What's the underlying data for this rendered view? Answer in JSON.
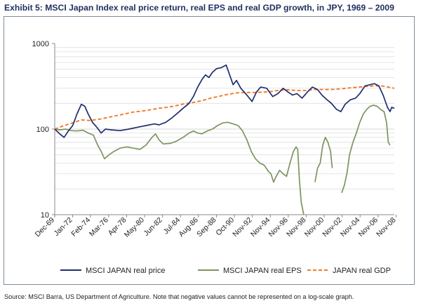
{
  "title": "Exhibit 5: MSCI Japan Index real price return, real EPS and real GDP growth, in JPY, 1969 – 2009",
  "source": "Source: MSCI Barra, US Department of Agriculture. Note that negative values cannot be represented on a log-scale graph.",
  "colors": {
    "price": "#1f2f6f",
    "eps": "#7d9460",
    "gdp": "#f07b2b",
    "grid": "#d7d7d7",
    "axis": "#888888",
    "text": "#222222"
  },
  "chart_data": {
    "type": "line",
    "title": "Exhibit 5: MSCI Japan Index real price return, real EPS and real GDP growth, in JPY, 1969 – 2009",
    "xlabel": "",
    "ylabel": "",
    "yscale": "log",
    "ylim": [
      10,
      1000
    ],
    "xlim": [
      1969.92,
      2009.3
    ],
    "y_ticks": [
      10,
      100,
      1000
    ],
    "y_tick_labels": [
      "10",
      "100",
      "1000"
    ],
    "x_ticks": [
      1969.92,
      1972.0,
      1974.08,
      1976.17,
      1978.25,
      1980.33,
      1982.42,
      1984.5,
      1986.58,
      1988.67,
      1990.75,
      1992.83,
      1994.92,
      1997.0,
      1999.08,
      2001.17,
      2003.25,
      2005.33,
      2007.42,
      2009.5
    ],
    "x_tick_labels": [
      "Dec-69",
      "Jan-72",
      "Feb-74",
      "Mar-76",
      "Apr-78",
      "May-80",
      "Jun-82",
      "Jul-84",
      "Aug-86",
      "Sep-88",
      "Oct-90",
      "Nov-92",
      "Nov-94",
      "Nov-96",
      "Nov-98",
      "Nov-00",
      "Nov-02",
      "Nov-04",
      "Nov-06",
      "Nov-08"
    ],
    "legend_position": "bottom",
    "series": [
      {
        "name": "MSCI JAPAN real price",
        "style": "solid",
        "points": [
          [
            1969.92,
            100
          ],
          [
            1970.5,
            88
          ],
          [
            1971.0,
            80
          ],
          [
            1971.5,
            95
          ],
          [
            1972.0,
            110
          ],
          [
            1972.5,
            150
          ],
          [
            1973.0,
            195
          ],
          [
            1973.4,
            185
          ],
          [
            1973.8,
            150
          ],
          [
            1974.3,
            120
          ],
          [
            1974.8,
            105
          ],
          [
            1975.3,
            90
          ],
          [
            1975.8,
            100
          ],
          [
            1976.5,
            98
          ],
          [
            1977.5,
            96
          ],
          [
            1978.5,
            100
          ],
          [
            1979.5,
            105
          ],
          [
            1980.5,
            110
          ],
          [
            1981.5,
            115
          ],
          [
            1982.0,
            112
          ],
          [
            1982.8,
            120
          ],
          [
            1983.5,
            135
          ],
          [
            1984.2,
            155
          ],
          [
            1984.8,
            175
          ],
          [
            1985.5,
            200
          ],
          [
            1986.0,
            240
          ],
          [
            1986.5,
            310
          ],
          [
            1987.0,
            380
          ],
          [
            1987.4,
            430
          ],
          [
            1987.8,
            400
          ],
          [
            1988.2,
            460
          ],
          [
            1988.7,
            510
          ],
          [
            1989.2,
            520
          ],
          [
            1989.8,
            560
          ],
          [
            1990.2,
            430
          ],
          [
            1990.6,
            330
          ],
          [
            1991.0,
            370
          ],
          [
            1991.5,
            300
          ],
          [
            1992.2,
            250
          ],
          [
            1992.8,
            210
          ],
          [
            1993.3,
            270
          ],
          [
            1993.8,
            310
          ],
          [
            1994.5,
            300
          ],
          [
            1995.2,
            240
          ],
          [
            1995.8,
            260
          ],
          [
            1996.4,
            300
          ],
          [
            1997.0,
            270
          ],
          [
            1997.5,
            250
          ],
          [
            1998.0,
            260
          ],
          [
            1998.6,
            230
          ],
          [
            1999.2,
            270
          ],
          [
            1999.8,
            310
          ],
          [
            2000.4,
            290
          ],
          [
            2000.9,
            250
          ],
          [
            2001.5,
            220
          ],
          [
            2002.0,
            200
          ],
          [
            2002.6,
            170
          ],
          [
            2003.1,
            160
          ],
          [
            2003.6,
            195
          ],
          [
            2004.2,
            220
          ],
          [
            2004.8,
            230
          ],
          [
            2005.3,
            260
          ],
          [
            2005.9,
            320
          ],
          [
            2006.5,
            330
          ],
          [
            2007.0,
            340
          ],
          [
            2007.5,
            320
          ],
          [
            2008.0,
            250
          ],
          [
            2008.5,
            180
          ],
          [
            2008.8,
            160
          ],
          [
            2009.0,
            180
          ],
          [
            2009.3,
            175
          ]
        ]
      },
      {
        "name": "MSCI JAPAN real EPS",
        "style": "solid",
        "segments": [
          [
            [
              1969.92,
              100
            ],
            [
              1970.5,
              98
            ],
            [
              1971.2,
              100
            ],
            [
              1971.8,
              96
            ],
            [
              1972.5,
              95
            ],
            [
              1973.2,
              97
            ],
            [
              1973.8,
              90
            ],
            [
              1974.4,
              85
            ],
            [
              1974.9,
              65
            ],
            [
              1975.3,
              55
            ],
            [
              1975.7,
              45
            ],
            [
              1976.2,
              50
            ],
            [
              1976.8,
              55
            ],
            [
              1977.5,
              60
            ],
            [
              1978.3,
              62
            ],
            [
              1979.0,
              60
            ],
            [
              1979.8,
              58
            ],
            [
              1980.5,
              65
            ],
            [
              1981.2,
              80
            ],
            [
              1981.6,
              88
            ],
            [
              1982.0,
              75
            ],
            [
              1982.5,
              67
            ],
            [
              1983.3,
              68
            ],
            [
              1984.0,
              72
            ],
            [
              1984.8,
              80
            ],
            [
              1985.5,
              90
            ],
            [
              1986.0,
              95
            ],
            [
              1986.5,
              90
            ],
            [
              1987.0,
              88
            ],
            [
              1987.6,
              95
            ],
            [
              1988.2,
              100
            ],
            [
              1988.8,
              110
            ],
            [
              1989.4,
              118
            ],
            [
              1990.0,
              120
            ],
            [
              1990.6,
              115
            ],
            [
              1991.2,
              110
            ],
            [
              1991.7,
              95
            ],
            [
              1992.2,
              75
            ],
            [
              1992.7,
              55
            ],
            [
              1993.2,
              45
            ],
            [
              1993.7,
              40
            ],
            [
              1994.2,
              38
            ],
            [
              1994.7,
              32
            ],
            [
              1995.0,
              30
            ],
            [
              1995.3,
              24
            ],
            [
              1995.6,
              28
            ],
            [
              1996.0,
              33
            ],
            [
              1996.4,
              30
            ],
            [
              1996.8,
              28
            ],
            [
              1997.2,
              40
            ],
            [
              1997.6,
              55
            ],
            [
              1997.9,
              62
            ],
            [
              1998.1,
              58
            ],
            [
              1998.3,
              25
            ],
            [
              1998.5,
              14
            ],
            [
              1998.8,
              10
            ]
          ],
          [
            [
              2000.1,
              24
            ],
            [
              2000.4,
              35
            ],
            [
              2000.7,
              40
            ],
            [
              2001.0,
              65
            ],
            [
              2001.3,
              80
            ],
            [
              2001.6,
              70
            ],
            [
              2001.9,
              55
            ],
            [
              2002.1,
              35
            ]
          ],
          [
            [
              2003.2,
              18
            ],
            [
              2003.5,
              22
            ],
            [
              2003.8,
              30
            ],
            [
              2004.1,
              50
            ],
            [
              2004.5,
              70
            ],
            [
              2004.9,
              90
            ],
            [
              2005.3,
              120
            ],
            [
              2005.7,
              150
            ],
            [
              2006.1,
              170
            ],
            [
              2006.5,
              185
            ],
            [
              2006.9,
              190
            ],
            [
              2007.3,
              185
            ],
            [
              2007.7,
              170
            ],
            [
              2008.1,
              160
            ],
            [
              2008.4,
              120
            ],
            [
              2008.6,
              70
            ],
            [
              2008.8,
              65
            ]
          ]
        ]
      },
      {
        "name": "JAPAN real GDP",
        "style": "dashed",
        "points": [
          [
            1969.92,
            100
          ],
          [
            1971.0,
            110
          ],
          [
            1972.0,
            118
          ],
          [
            1973.0,
            128
          ],
          [
            1974.0,
            126
          ],
          [
            1975.0,
            130
          ],
          [
            1976.0,
            136
          ],
          [
            1977.0,
            143
          ],
          [
            1978.0,
            150
          ],
          [
            1979.0,
            158
          ],
          [
            1980.0,
            162
          ],
          [
            1981.0,
            168
          ],
          [
            1982.0,
            175
          ],
          [
            1983.0,
            180
          ],
          [
            1984.0,
            188
          ],
          [
            1985.0,
            198
          ],
          [
            1986.0,
            205
          ],
          [
            1987.0,
            215
          ],
          [
            1988.0,
            230
          ],
          [
            1989.0,
            242
          ],
          [
            1990.0,
            255
          ],
          [
            1991.0,
            265
          ],
          [
            1992.0,
            268
          ],
          [
            1993.0,
            268
          ],
          [
            1994.0,
            270
          ],
          [
            1995.0,
            275
          ],
          [
            1996.0,
            285
          ],
          [
            1997.0,
            288
          ],
          [
            1998.0,
            282
          ],
          [
            1999.0,
            282
          ],
          [
            2000.0,
            290
          ],
          [
            2001.0,
            290
          ],
          [
            2002.0,
            290
          ],
          [
            2003.0,
            295
          ],
          [
            2004.0,
            302
          ],
          [
            2005.0,
            308
          ],
          [
            2006.0,
            315
          ],
          [
            2007.0,
            320
          ],
          [
            2008.0,
            318
          ],
          [
            2009.3,
            300
          ]
        ]
      }
    ]
  }
}
